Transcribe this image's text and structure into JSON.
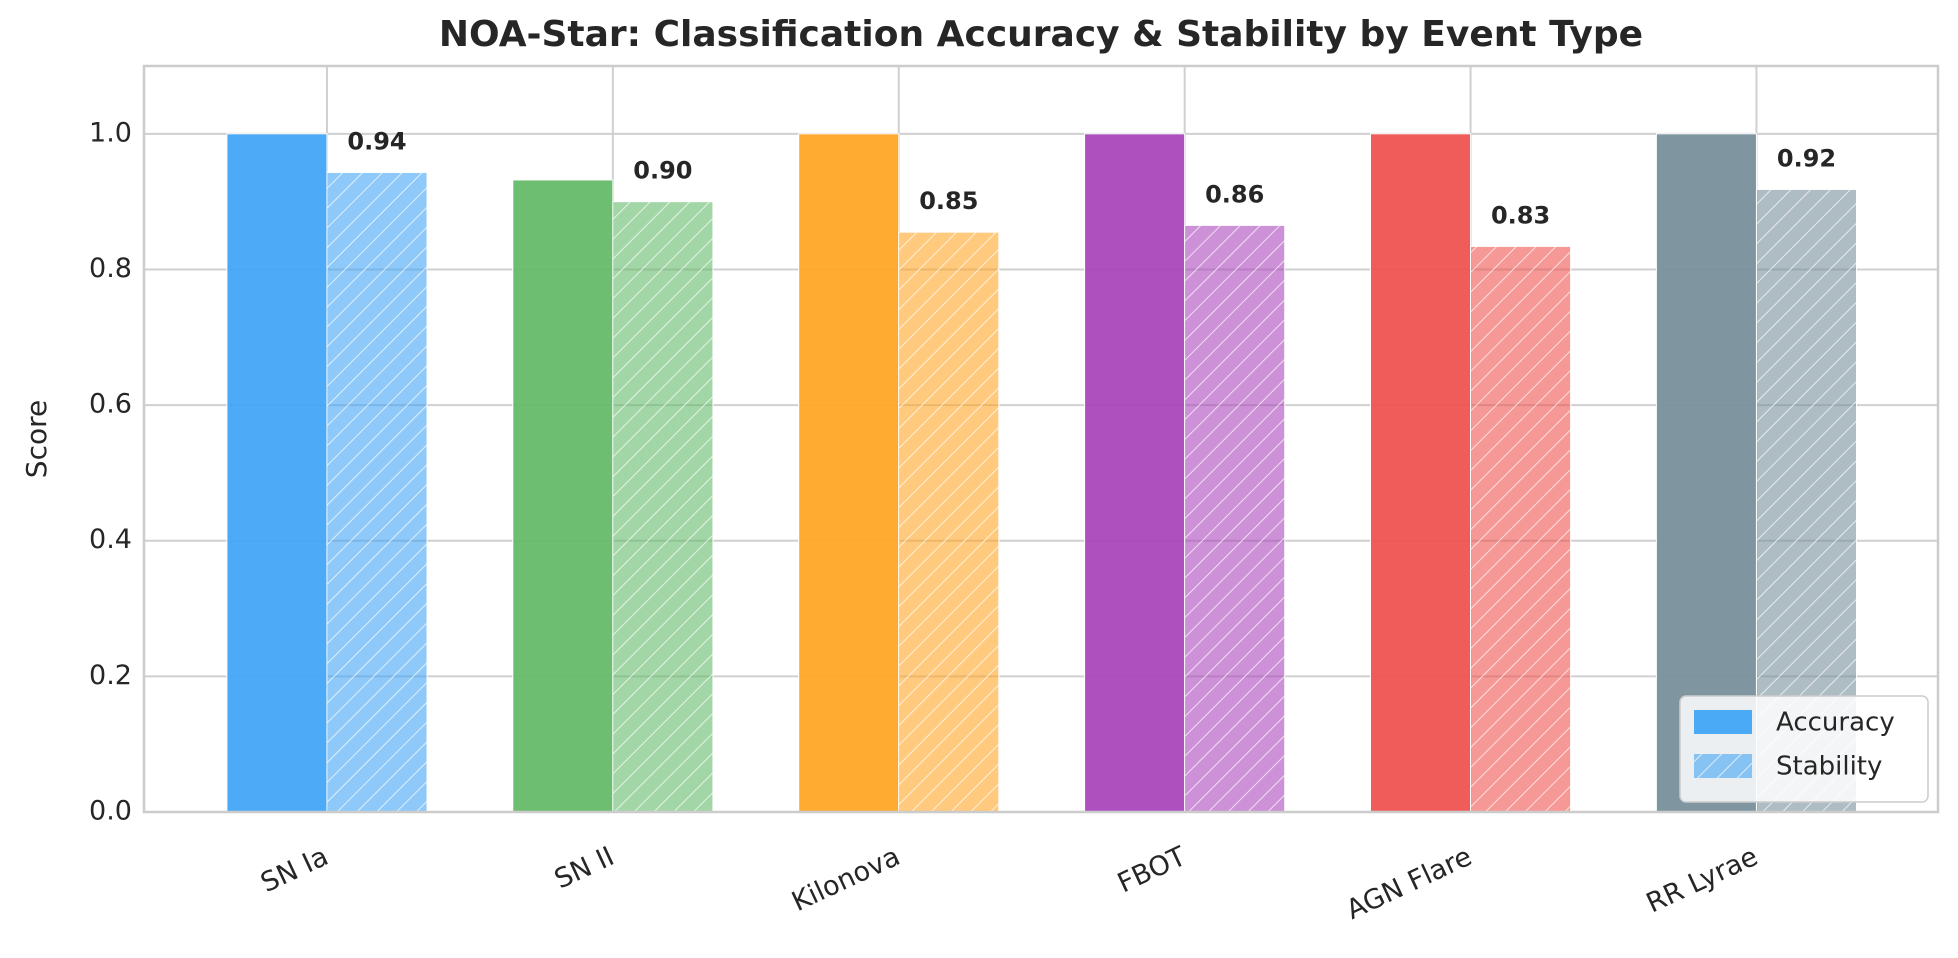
{
  "chart_data": {
    "type": "bar",
    "title": "NOA-Star: Classification Accuracy & Stability by Event Type",
    "y_label": "Score",
    "categories": [
      "SN Ia",
      "SN II",
      "Kilonova",
      "FBOT",
      "AGN Flare",
      "RR Lyrae"
    ],
    "series": [
      {
        "name": "Accuracy",
        "color": "#42a5f5",
        "colors": [
          "#42a5f5",
          "#66bb6a",
          "#ffa726",
          "#ab47bc",
          "#ef5350",
          "#78909c"
        ],
        "values": [
          1.0,
          0.932,
          1.0,
          1.0,
          1.0,
          1.0
        ]
      },
      {
        "name": "Stability",
        "color": "#42a5f5",
        "hatch": true,
        "colors": [
          "#42a5f5",
          "#66bb6a",
          "#ffa726",
          "#ab47bc",
          "#ef5350",
          "#78909c"
        ],
        "values": [
          0.943,
          0.9,
          0.855,
          0.865,
          0.834,
          0.918
        ],
        "value_labels": [
          "0.94",
          "0.90",
          "0.85",
          "0.86",
          "0.83",
          "0.92"
        ]
      }
    ],
    "ylim": [
      0,
      1.1
    ],
    "yticks": [
      {
        "value": 0,
        "label": "0.0"
      },
      0.2,
      0.4,
      0.6,
      0.8,
      {
        "value": 1,
        "label": "1.0"
      }
    ],
    "grid": true,
    "legend": "lower right"
  }
}
